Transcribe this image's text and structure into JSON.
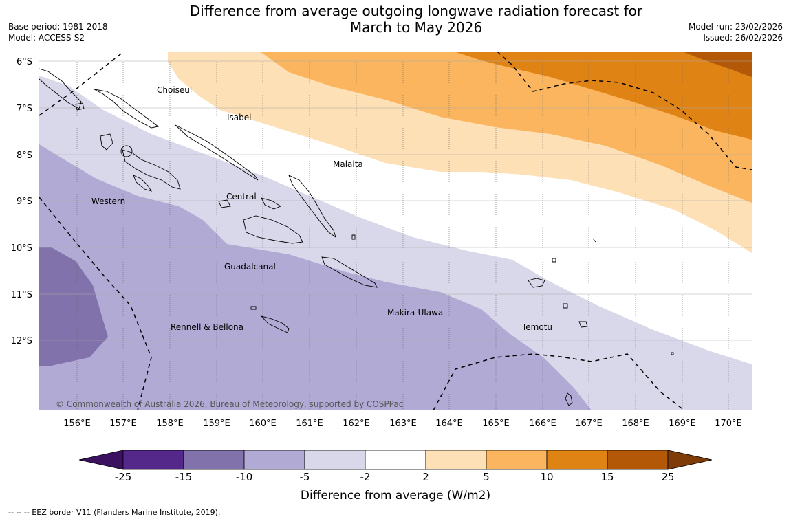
{
  "title": {
    "line1": "Difference from average outgoing longwave radiation forecast for",
    "line2": "March to May 2026"
  },
  "meta_left": {
    "base_period": "Base period: 1981-2018",
    "model": "Model: ACCESS-S2"
  },
  "meta_right": {
    "model_run": "Model run: 23/02/2026",
    "issued": "Issued: 26/02/2026"
  },
  "map": {
    "lat_labels": [
      "6°S",
      "7°S",
      "8°S",
      "9°S",
      "10°S",
      "11°S",
      "12°S"
    ],
    "lon_labels": [
      "156°E",
      "157°E",
      "158°E",
      "159°E",
      "160°E",
      "161°E",
      "162°E",
      "163°E",
      "164°E",
      "165°E",
      "166°E",
      "167°E",
      "168°E",
      "169°E",
      "170°E"
    ],
    "regions": [
      "Choiseul",
      "Isabel",
      "Malaita",
      "Western",
      "Central",
      "Guadalcanal",
      "Makira-Ulawa",
      "Rennell & Bellona",
      "Temotu"
    ],
    "copyright": "© Commonwealth of Australia 2026, Bureau of Meteorology, supported by COSPPac"
  },
  "colorbar": {
    "ticks": [
      "-25",
      "-15",
      "-10",
      "-5",
      "-2",
      "2",
      "5",
      "10",
      "15",
      "25"
    ],
    "colors": [
      "#3b1160",
      "#54288a",
      "#8272ab",
      "#b0aad4",
      "#d8d8ea",
      "#ffffff",
      "#fde0b5",
      "#fbb55e",
      "#e08315",
      "#b35806",
      "#7f3b08"
    ],
    "label": "Difference from average (W/m2)"
  },
  "footnote": "--  --  -- EEZ border V11 (Flanders Marine Institute, 2019)."
}
